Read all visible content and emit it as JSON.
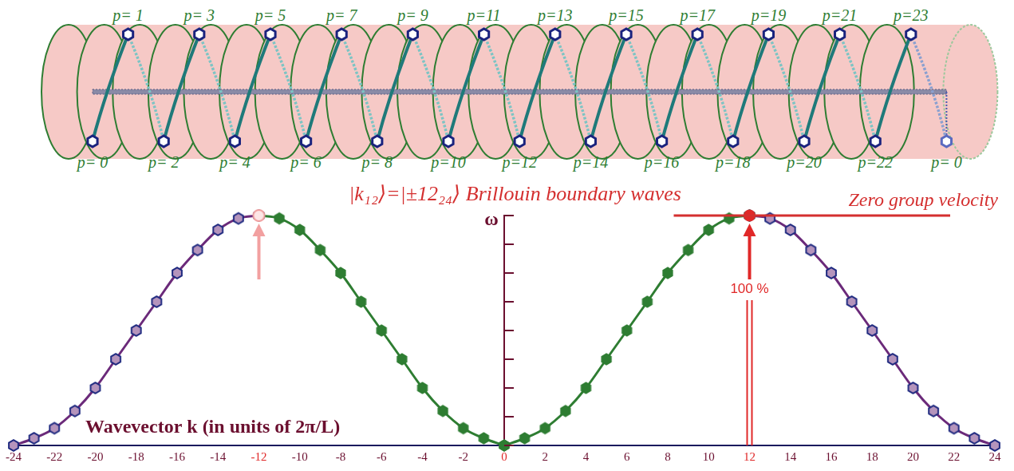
{
  "diagram": {
    "top_labels": [
      "p= 1",
      "p= 3",
      "p= 5",
      "p= 7",
      "p= 9",
      "p=11",
      "p=13",
      "p=15",
      "p=17",
      "p=19",
      "p=21",
      "p=23"
    ],
    "bottom_labels": [
      "p= 0",
      "p= 2",
      "p= 4",
      "p= 6",
      "p= 8",
      "p=10",
      "p=12",
      "p=14",
      "p=16",
      "p=18",
      "p=20",
      "p=22",
      "p= 0"
    ]
  },
  "chart_data": {
    "type": "line",
    "title": "|k₁₂⟩=|±12₂₄⟩ Brillouin boundary waves",
    "x_label": "Wavevector k (in units of 2π/L)",
    "y_label": "ω",
    "xlim": [
      -24,
      24
    ],
    "xticks": [
      -24,
      -22,
      -20,
      -18,
      -16,
      -14,
      -12,
      -10,
      -8,
      -6,
      -4,
      -2,
      0,
      2,
      4,
      6,
      8,
      10,
      12,
      14,
      16,
      18,
      20,
      22,
      24
    ],
    "ylim": [
      0,
      8
    ],
    "yticks": [
      0,
      1,
      2,
      3,
      4,
      5,
      6,
      7,
      8
    ],
    "tick_labels": "x",
    "grid": false,
    "series": [
      {
        "x": [
          -24,
          -23,
          -22,
          -21,
          -20,
          -19,
          -18,
          -17,
          -16,
          -15,
          -14,
          -13,
          -12
        ],
        "values": [
          0,
          0.25,
          0.6,
          1.2,
          2,
          3,
          4,
          5,
          6,
          6.8,
          7.5,
          7.9,
          8
        ],
        "color": "#6b2a7a",
        "marker": "hexagon-outline",
        "line_style": "solid"
      },
      {
        "x": [
          -12,
          -11,
          -10,
          -9,
          -8,
          -7,
          -6,
          -5,
          -4,
          -3,
          -2,
          -1,
          0
        ],
        "values": [
          8,
          7.9,
          7.5,
          6.8,
          6,
          5,
          4,
          3,
          2,
          1.2,
          0.6,
          0.25,
          0
        ],
        "color": "#2e7d32",
        "marker": "hexagon",
        "line_style": "solid"
      },
      {
        "x": [
          0,
          1,
          2,
          3,
          4,
          5,
          6,
          7,
          8,
          9,
          10,
          11,
          12
        ],
        "values": [
          0,
          0.25,
          0.6,
          1.2,
          2,
          3,
          4,
          5,
          6,
          6.8,
          7.5,
          7.9,
          8
        ],
        "color": "#2e7d32",
        "marker": "hexagon",
        "line_style": "solid"
      },
      {
        "x": [
          12,
          13,
          14,
          15,
          16,
          17,
          18,
          19,
          20,
          21,
          22,
          23,
          24
        ],
        "values": [
          8,
          7.9,
          7.5,
          6.8,
          6,
          5,
          4,
          3,
          2,
          1.2,
          0.6,
          0.25,
          0
        ],
        "color": "#6b2a7a",
        "marker": "hexagon-outline",
        "line_style": "solid"
      },
      {
        "x": [
          12
        ],
        "values": [
          8
        ],
        "color": "#e02828",
        "marker": "circle"
      },
      {
        "x": [
          -12
        ],
        "values": [
          8
        ],
        "color": "#f2a0a0",
        "marker": "circle-open"
      }
    ],
    "annotations": [
      {
        "text": "Zero group velocity",
        "x": 12,
        "y": 8
      },
      {
        "text": "100 %",
        "x": 12
      }
    ]
  }
}
